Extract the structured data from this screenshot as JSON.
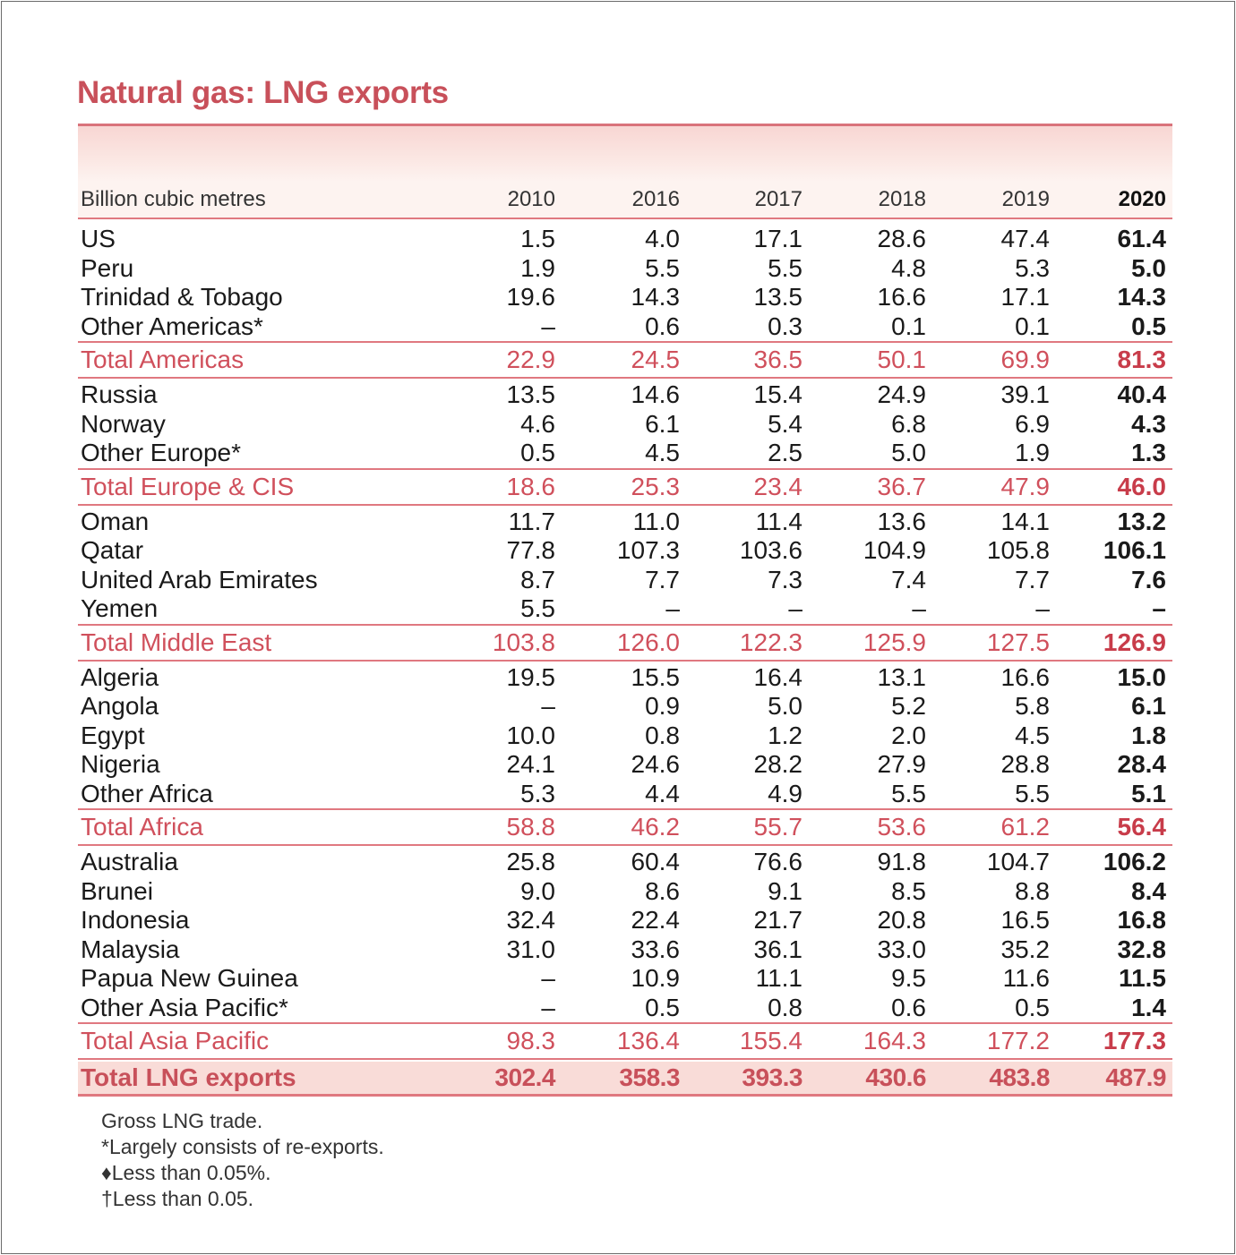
{
  "title": "Natural gas: LNG exports",
  "header": {
    "unit": "Billion cubic metres",
    "years": [
      "2010",
      "2016",
      "2017",
      "2018",
      "2019",
      "2020"
    ]
  },
  "rows": [
    {
      "label": "US",
      "type": "row",
      "values": [
        "1.5",
        "4.0",
        "17.1",
        "28.6",
        "47.4",
        "61.4"
      ]
    },
    {
      "label": "Peru",
      "type": "row",
      "values": [
        "1.9",
        "5.5",
        "5.5",
        "4.8",
        "5.3",
        "5.0"
      ]
    },
    {
      "label": "Trinidad & Tobago",
      "type": "row",
      "values": [
        "19.6",
        "14.3",
        "13.5",
        "16.6",
        "17.1",
        "14.3"
      ]
    },
    {
      "label": "Other Americas*",
      "type": "row",
      "values": [
        "–",
        "0.6",
        "0.3",
        "0.1",
        "0.1",
        "0.5"
      ]
    },
    {
      "label": "Total Americas",
      "type": "total",
      "values": [
        "22.9",
        "24.5",
        "36.5",
        "50.1",
        "69.9",
        "81.3"
      ]
    },
    {
      "label": "Russia",
      "type": "row",
      "values": [
        "13.5",
        "14.6",
        "15.4",
        "24.9",
        "39.1",
        "40.4"
      ]
    },
    {
      "label": "Norway",
      "type": "row",
      "values": [
        "4.6",
        "6.1",
        "5.4",
        "6.8",
        "6.9",
        "4.3"
      ]
    },
    {
      "label": "Other Europe*",
      "type": "row",
      "values": [
        "0.5",
        "4.5",
        "2.5",
        "5.0",
        "1.9",
        "1.3"
      ]
    },
    {
      "label": "Total Europe & CIS",
      "type": "total",
      "values": [
        "18.6",
        "25.3",
        "23.4",
        "36.7",
        "47.9",
        "46.0"
      ]
    },
    {
      "label": "Oman",
      "type": "row",
      "values": [
        "11.7",
        "11.0",
        "11.4",
        "13.6",
        "14.1",
        "13.2"
      ]
    },
    {
      "label": "Qatar",
      "type": "row",
      "values": [
        "77.8",
        "107.3",
        "103.6",
        "104.9",
        "105.8",
        "106.1"
      ]
    },
    {
      "label": "United Arab Emirates",
      "type": "row",
      "values": [
        "8.7",
        "7.7",
        "7.3",
        "7.4",
        "7.7",
        "7.6"
      ]
    },
    {
      "label": "Yemen",
      "type": "row",
      "values": [
        "5.5",
        "–",
        "–",
        "–",
        "–",
        "–"
      ]
    },
    {
      "label": "Total Middle East",
      "type": "total",
      "values": [
        "103.8",
        "126.0",
        "122.3",
        "125.9",
        "127.5",
        "126.9"
      ]
    },
    {
      "label": "Algeria",
      "type": "row",
      "values": [
        "19.5",
        "15.5",
        "16.4",
        "13.1",
        "16.6",
        "15.0"
      ]
    },
    {
      "label": "Angola",
      "type": "row",
      "values": [
        "–",
        "0.9",
        "5.0",
        "5.2",
        "5.8",
        "6.1"
      ]
    },
    {
      "label": "Egypt",
      "type": "row",
      "values": [
        "10.0",
        "0.8",
        "1.2",
        "2.0",
        "4.5",
        "1.8"
      ]
    },
    {
      "label": "Nigeria",
      "type": "row",
      "values": [
        "24.1",
        "24.6",
        "28.2",
        "27.9",
        "28.8",
        "28.4"
      ]
    },
    {
      "label": "Other Africa",
      "type": "row",
      "values": [
        "5.3",
        "4.4",
        "4.9",
        "5.5",
        "5.5",
        "5.1"
      ]
    },
    {
      "label": "Total Africa",
      "type": "total",
      "values": [
        "58.8",
        "46.2",
        "55.7",
        "53.6",
        "61.2",
        "56.4"
      ]
    },
    {
      "label": "Australia",
      "type": "row",
      "values": [
        "25.8",
        "60.4",
        "76.6",
        "91.8",
        "104.7",
        "106.2"
      ]
    },
    {
      "label": "Brunei",
      "type": "row",
      "values": [
        "9.0",
        "8.6",
        "9.1",
        "8.5",
        "8.8",
        "8.4"
      ]
    },
    {
      "label": "Indonesia",
      "type": "row",
      "values": [
        "32.4",
        "22.4",
        "21.7",
        "20.8",
        "16.5",
        "16.8"
      ]
    },
    {
      "label": "Malaysia",
      "type": "row",
      "values": [
        "31.0",
        "33.6",
        "36.1",
        "33.0",
        "35.2",
        "32.8"
      ]
    },
    {
      "label": "Papua New Guinea",
      "type": "row",
      "values": [
        "–",
        "10.9",
        "11.1",
        "9.5",
        "11.6",
        "11.5"
      ]
    },
    {
      "label": "Other Asia Pacific*",
      "type": "row",
      "values": [
        "–",
        "0.5",
        "0.8",
        "0.6",
        "0.5",
        "1.4"
      ]
    },
    {
      "label": "Total Asia Pacific",
      "type": "total",
      "values": [
        "98.3",
        "136.4",
        "155.4",
        "164.3",
        "177.2",
        "177.3"
      ]
    },
    {
      "label": "Total LNG exports",
      "type": "grand",
      "values": [
        "302.4",
        "358.3",
        "393.3",
        "430.6",
        "483.8",
        "487.9"
      ]
    }
  ],
  "notes": [
    "Gross LNG trade.",
    "*Largely consists of re-exports.",
    "♦Less than 0.05%.",
    "†Less than 0.05."
  ],
  "colors": {
    "accent": "#c8505a",
    "rule": "#e07880",
    "band": "#f9dcd8"
  }
}
